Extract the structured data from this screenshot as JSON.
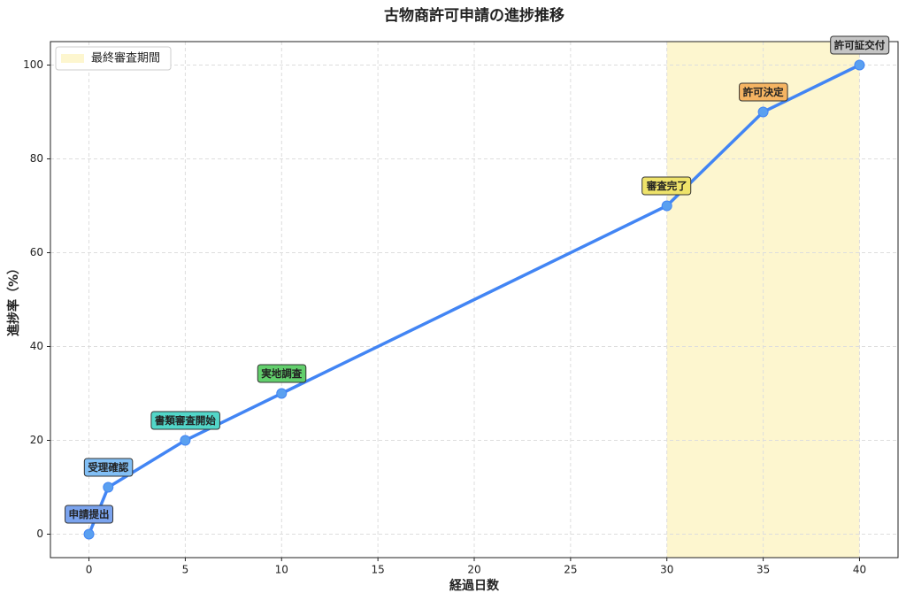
{
  "chart_data": {
    "type": "line",
    "title": "古物商許可申請の進捗推移",
    "x_label": "経過日数",
    "y_label": "進捗率（%）",
    "x": [
      0,
      1,
      5,
      10,
      30,
      35,
      40
    ],
    "series": [
      {
        "color": "#4285f4",
        "marker_color": "#5aa0f0",
        "values": [
          0,
          10,
          20,
          30,
          70,
          90,
          100
        ],
        "point_labels": [
          "申請提出",
          "受理確認",
          "書類審査開始",
          "実地調査",
          "審査完了",
          "許可決定",
          "許可証交付"
        ],
        "label_colors": [
          "#7aa3ee",
          "#82bff5",
          "#52d6c8",
          "#62cf6c",
          "#efe36a",
          "#f5b462",
          "#c4c4c4"
        ]
      }
    ],
    "highlight": {
      "x": [
        30,
        40
      ],
      "label": "最終審査期間",
      "color": "#fdf6cf"
    },
    "xlim": [
      -2,
      42
    ],
    "ylim": [
      -5,
      105
    ],
    "xticks": [
      0,
      5,
      10,
      15,
      20,
      25,
      30,
      35,
      40
    ],
    "yticks": [
      0,
      20,
      40,
      60,
      80,
      100
    ],
    "grid": true,
    "legend": "upper-left"
  }
}
